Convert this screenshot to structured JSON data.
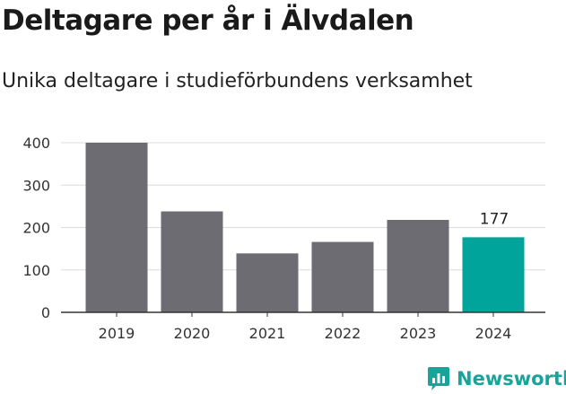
{
  "header": {
    "title": "Deltagare per år i Älvdalen",
    "subtitle": "Unika deltagare i studieförbundens verksamhet"
  },
  "chart_data": {
    "type": "bar",
    "title": "Deltagare per år i Älvdalen",
    "subtitle": "Unika deltagare i studieförbundens verksamhet",
    "categories": [
      "2019",
      "2020",
      "2021",
      "2022",
      "2023",
      "2024"
    ],
    "values": [
      400,
      238,
      139,
      166,
      218,
      177
    ],
    "ylim": [
      0,
      400
    ],
    "yticks": [
      0,
      100,
      200,
      300,
      400
    ],
    "grid": true,
    "labeled": [
      {
        "index": 5,
        "label": "177"
      }
    ],
    "colors": {
      "default": "#6d6c72",
      "highlight": "#00a49a"
    },
    "highlight_index": 5
  },
  "footer": {
    "brand": "Newsworthy",
    "brand_color": "#1aa39a",
    "icon": "newsworthy-logo-icon"
  }
}
